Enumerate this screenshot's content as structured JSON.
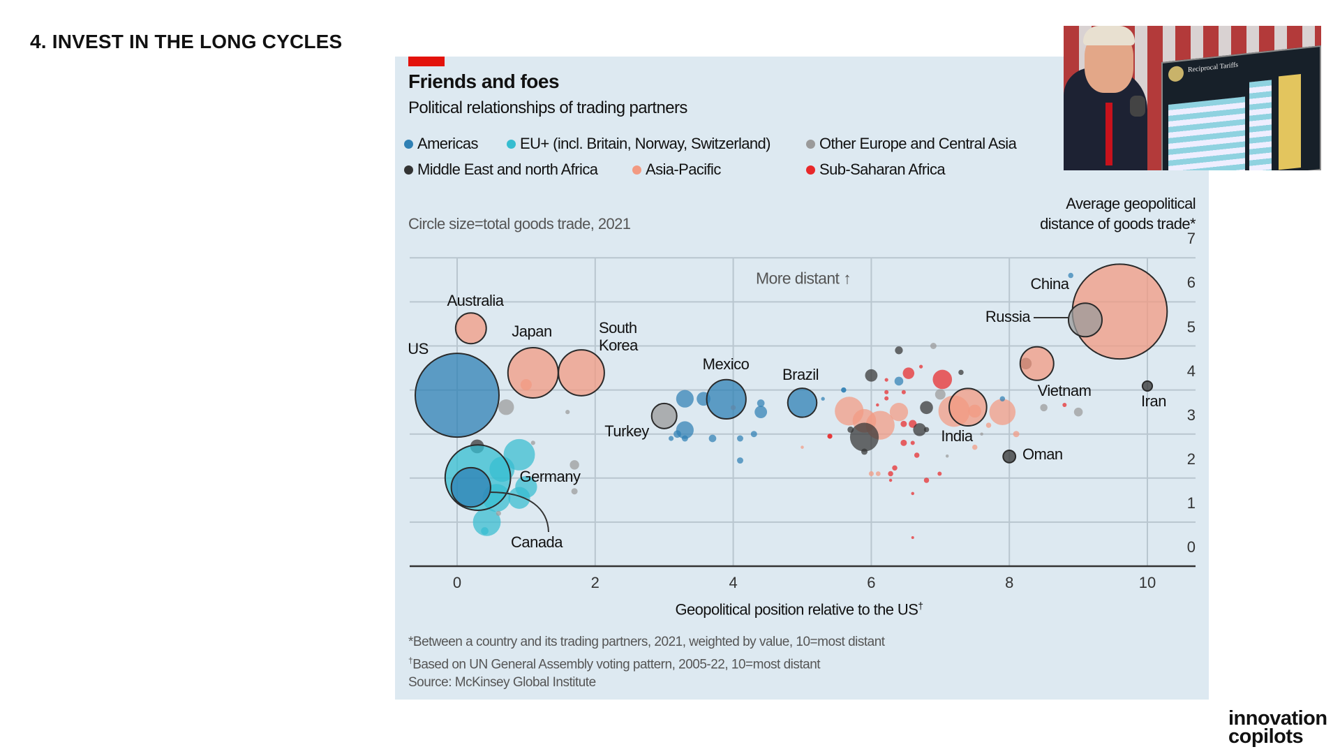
{
  "slide": {
    "title": "4. INVEST IN THE LONG CYCLES",
    "logo_text_line1": "innovation",
    "logo_text_line2": "copilots"
  },
  "photo": {
    "board_title": "Reciprocal Tariffs"
  },
  "chart_data": {
    "type": "scatter",
    "subtype": "bubble",
    "title": "Friends and foes",
    "subtitle": "Political relationships of trading partners",
    "size_note": "Circle size=total goods trade, 2021",
    "xlabel": "Geopolitical position relative to the US",
    "xlabel_mark": "†",
    "ylabel_line1": "Average geopolitical",
    "ylabel_line2": "distance of goods trade*",
    "annotation": "More distant ↑",
    "xlim": [
      -0.7,
      10.7
    ],
    "ylim": [
      0,
      7
    ],
    "xticks": [
      "0",
      "2",
      "4",
      "6",
      "8",
      "10"
    ],
    "yticks": [
      "0",
      "1",
      "2",
      "3",
      "4",
      "5",
      "6",
      "7"
    ],
    "grid": true,
    "y_axis_side": "right",
    "legend_placement": "top",
    "legend": [
      {
        "name": "Americas",
        "color": "#2f80b4"
      },
      {
        "name": "EU+ (incl. Britain, Norway, Switzerland)",
        "color": "#36bdd0"
      },
      {
        "name": "Other Europe and Central Asia",
        "color": "#9a9a9a"
      },
      {
        "name": "Middle East and north Africa",
        "color": "#333333"
      },
      {
        "name": "Asia-Pacific",
        "color": "#f29a82"
      },
      {
        "name": "Sub-Saharan Africa",
        "color": "#e8282a"
      }
    ],
    "labeled_points": [
      {
        "label": "US",
        "x": 0.0,
        "y": 3.88,
        "region": "Americas",
        "size": 100
      },
      {
        "label": "Australia",
        "x": 0.2,
        "y": 5.4,
        "region": "Asia-Pacific",
        "size": 13.4
      },
      {
        "label": "Japan",
        "x": 1.1,
        "y": 4.39,
        "region": "Asia-Pacific",
        "size": 36
      },
      {
        "label": "South",
        "label2": "Korea",
        "x": 1.8,
        "y": 4.39,
        "region": "Asia-Pacific",
        "size": 30
      },
      {
        "label": "Germany",
        "x": 0.3,
        "y": 2.01,
        "region": "EU+ (incl. Britain, Norway, Switzerland)",
        "size": 61
      },
      {
        "label": "Canada",
        "x": 0.2,
        "y": 1.79,
        "region": "Americas",
        "size": 22
      },
      {
        "label": "Turkey",
        "x": 3.0,
        "y": 3.41,
        "region": "Other Europe and Central Asia",
        "size": 9
      },
      {
        "label": "Mexico",
        "x": 3.9,
        "y": 3.79,
        "region": "Americas",
        "size": 22
      },
      {
        "label": "Brazil",
        "x": 5.0,
        "y": 3.71,
        "region": "Americas",
        "size": 12
      },
      {
        "label": "India",
        "x": 7.4,
        "y": 3.61,
        "region": "Asia-Pacific",
        "size": 20
      },
      {
        "label": "Oman",
        "x": 8.0,
        "y": 2.49,
        "region": "Middle East and north Africa",
        "size": 2.2
      },
      {
        "label": "Vietnam",
        "x": 8.4,
        "y": 4.6,
        "region": "Asia-Pacific",
        "size": 16
      },
      {
        "label": "China",
        "x": 9.6,
        "y": 5.78,
        "region": "Asia-Pacific",
        "size": 128
      },
      {
        "label": "Russia",
        "x": 9.1,
        "y": 5.59,
        "region": "Other Europe and Central Asia",
        "size": 16
      },
      {
        "label": "Iran",
        "x": 10.0,
        "y": 4.09,
        "region": "Middle East and north Africa",
        "size": 1.4
      }
    ],
    "other_points": [
      [
        0.71,
        3.61,
        "Other Europe and Central Asia",
        3.5
      ],
      [
        1.6,
        3.5,
        "Other Europe and Central Asia",
        0.27
      ],
      [
        1.0,
        4.12,
        "Asia-Pacific",
        1.8
      ],
      [
        3.3,
        3.8,
        "Americas",
        4.4
      ],
      [
        3.57,
        3.8,
        "Americas",
        2.7
      ],
      [
        3.3,
        3.09,
        "Americas",
        4.4
      ],
      [
        3.19,
        3.0,
        "Americas",
        0.8
      ],
      [
        3.3,
        2.9,
        "Americas",
        0.56
      ],
      [
        3.1,
        2.9,
        "Americas",
        0.36
      ],
      [
        3.7,
        2.9,
        "Americas",
        0.8
      ],
      [
        4.1,
        2.9,
        "Americas",
        0.56
      ],
      [
        4.3,
        3.0,
        "Americas",
        0.56
      ],
      [
        4.1,
        2.4,
        "Americas",
        0.56
      ],
      [
        4.4,
        3.5,
        "Americas",
        2.2
      ],
      [
        4.4,
        3.7,
        "Americas",
        0.8
      ],
      [
        4.0,
        3.6,
        "Asia-Pacific",
        0.36
      ],
      [
        5.3,
        3.8,
        "Americas",
        0.2
      ],
      [
        5.6,
        4.0,
        "Americas",
        0.36
      ],
      [
        6.0,
        4.33,
        "Middle East and north Africa",
        2.2
      ],
      [
        0.29,
        2.72,
        "Middle East and north Africa",
        2.7
      ],
      [
        1.1,
        2.8,
        "Other Europe and Central Asia",
        0.27
      ],
      [
        1.7,
        2.3,
        "Other Europe and Central Asia",
        1.25
      ],
      [
        1.7,
        1.7,
        "Other Europe and Central Asia",
        0.56
      ],
      [
        0.9,
        2.53,
        "EU+ (incl. Britain, Norway, Switzerland)",
        14
      ],
      [
        0.9,
        1.55,
        "EU+ (incl. Britain, Norway, Switzerland)",
        6.8
      ],
      [
        0.43,
        1.0,
        "EU+ (incl. Britain, Norway, Switzerland)",
        11
      ],
      [
        0.57,
        1.55,
        "EU+ (incl. Britain, Norway, Switzerland)",
        11
      ],
      [
        1.0,
        1.8,
        "EU+ (incl. Britain, Norway, Switzerland)",
        6.8
      ],
      [
        0.65,
        2.2,
        "EU+ (incl. Britain, Norway, Switzerland)",
        9
      ],
      [
        0.4,
        0.8,
        "EU+ (incl. Britain, Norway, Switzerland)",
        0.8
      ],
      [
        0.6,
        1.2,
        "Other Europe and Central Asia",
        0.36
      ],
      [
        5.0,
        2.7,
        "Asia-Pacific",
        0.14
      ],
      [
        5.4,
        2.95,
        "Sub-Saharan Africa",
        0.36
      ],
      [
        6.0,
        2.1,
        "Asia-Pacific",
        0.36
      ],
      [
        8.89,
        6.6,
        "Americas",
        0.39
      ],
      [
        6.4,
        4.9,
        "Middle East and north Africa",
        0.88
      ],
      [
        6.9,
        5.0,
        "Other Europe and Central Asia",
        0.56
      ],
      [
        6.54,
        4.38,
        "Sub-Saharan Africa",
        1.9
      ],
      [
        7.03,
        4.24,
        "Sub-Saharan Africa",
        5.3
      ],
      [
        6.4,
        4.2,
        "Americas",
        1.1
      ],
      [
        6.72,
        4.53,
        "Sub-Saharan Africa",
        0.19
      ],
      [
        7.3,
        4.4,
        "Middle East and north Africa",
        0.39
      ],
      [
        6.22,
        4.23,
        "Sub-Saharan Africa",
        0.19
      ],
      [
        6.22,
        3.95,
        "Sub-Saharan Africa",
        0.25
      ],
      [
        6.47,
        3.95,
        "Sub-Saharan Africa",
        0.25
      ],
      [
        6.22,
        3.81,
        "Sub-Saharan Africa",
        0.25
      ],
      [
        6.09,
        3.66,
        "Sub-Saharan Africa",
        0.14
      ],
      [
        5.6,
        4.0,
        "Americas",
        0.39
      ],
      [
        7.0,
        3.9,
        "Other Europe and Central Asia",
        1.56
      ],
      [
        6.8,
        3.6,
        "Middle East and north Africa",
        2.4
      ],
      [
        5.68,
        3.52,
        "Asia-Pacific",
        11.8
      ],
      [
        5.9,
        3.3,
        "Asia-Pacific",
        7.9
      ],
      [
        6.13,
        3.2,
        "Asia-Pacific",
        11.8
      ],
      [
        5.9,
        2.93,
        "Middle East and north Africa",
        11.8
      ],
      [
        6.4,
        3.5,
        "Asia-Pacific",
        4.8
      ],
      [
        7.2,
        3.52,
        "Asia-Pacific",
        14
      ],
      [
        7.5,
        3.52,
        "Asia-Pacific",
        2.4
      ],
      [
        7.9,
        3.5,
        "Asia-Pacific",
        9.8
      ],
      [
        7.9,
        3.8,
        "Americas",
        0.39
      ],
      [
        6.47,
        3.23,
        "Sub-Saharan Africa",
        0.56
      ],
      [
        6.6,
        3.23,
        "Sub-Saharan Africa",
        0.88
      ],
      [
        6.7,
        3.1,
        "Middle East and north Africa",
        2.4
      ],
      [
        6.8,
        3.1,
        "Middle East and north Africa",
        0.39
      ],
      [
        7.7,
        3.2,
        "Asia-Pacific",
        0.39
      ],
      [
        8.1,
        3.0,
        "Asia-Pacific",
        0.56
      ],
      [
        7.6,
        3.0,
        "Other Europe and Central Asia",
        0.14
      ],
      [
        7.5,
        2.7,
        "Asia-Pacific",
        0.39
      ],
      [
        6.47,
        2.8,
        "Sub-Saharan Africa",
        0.56
      ],
      [
        6.6,
        2.8,
        "Sub-Saharan Africa",
        0.25
      ],
      [
        6.66,
        2.52,
        "Sub-Saharan Africa",
        0.39
      ],
      [
        7.1,
        2.5,
        "Other Europe and Central Asia",
        0.14
      ],
      [
        6.34,
        2.23,
        "Sub-Saharan Africa",
        0.39
      ],
      [
        6.28,
        2.1,
        "Sub-Saharan Africa",
        0.39
      ],
      [
        6.1,
        2.1,
        "Asia-Pacific",
        0.32
      ],
      [
        6.8,
        1.95,
        "Sub-Saharan Africa",
        0.39
      ],
      [
        6.99,
        2.1,
        "Sub-Saharan Africa",
        0.25
      ],
      [
        6.28,
        1.95,
        "Sub-Saharan Africa",
        0.14
      ],
      [
        6.6,
        1.65,
        "Sub-Saharan Africa",
        0.14
      ],
      [
        6.6,
        0.65,
        "Sub-Saharan Africa",
        0.1
      ],
      [
        8.5,
        3.6,
        "Other Europe and Central Asia",
        0.77
      ],
      [
        8.8,
        3.66,
        "Sub-Saharan Africa",
        0.25
      ],
      [
        9.0,
        3.5,
        "Other Europe and Central Asia",
        1.1
      ],
      [
        8.24,
        4.6,
        "Middle East and north Africa",
        1.9
      ],
      [
        5.4,
        2.95,
        "Sub-Saharan Africa",
        0.32
      ],
      [
        5.7,
        3.1,
        "Middle East and north Africa",
        0.56
      ],
      [
        5.9,
        2.6,
        "Middle East and north Africa",
        0.56
      ]
    ],
    "footnotes": [
      "*Between a country and its trading partners, 2021, weighted by value, 10=most distant",
      "Based on UN General Assembly voting pattern, 2005-22, 10=most distant",
      "Source: McKinsey Global Institute"
    ],
    "footnote_mark": "†"
  }
}
